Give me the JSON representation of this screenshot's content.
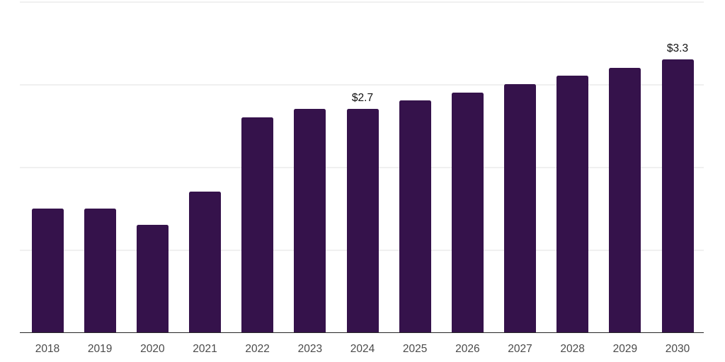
{
  "chart_data": {
    "type": "bar",
    "title": "",
    "xlabel": "",
    "ylabel": "",
    "categories": [
      "2018",
      "2019",
      "2020",
      "2021",
      "2022",
      "2023",
      "2024",
      "2025",
      "2026",
      "2027",
      "2028",
      "2029",
      "2030"
    ],
    "values": [
      1.5,
      1.5,
      1.3,
      1.7,
      2.6,
      2.7,
      2.7,
      2.8,
      2.9,
      3.0,
      3.1,
      3.2,
      3.3
    ],
    "value_labels": [
      {
        "category": "2024",
        "text": "$2.7"
      },
      {
        "category": "2030",
        "text": "$3.3"
      }
    ],
    "ylim": [
      0,
      4
    ],
    "gridline_values": [
      1,
      2,
      3,
      4
    ],
    "y_tick_labels_shown": false,
    "grid": "horizontal",
    "legend": "none"
  },
  "colors": {
    "bar": "#35124b",
    "gridline": "#f0f0f0",
    "axis_line": "#262626",
    "tick_label": "#4a4a4a",
    "value_label": "#111111",
    "background": "#ffffff"
  }
}
